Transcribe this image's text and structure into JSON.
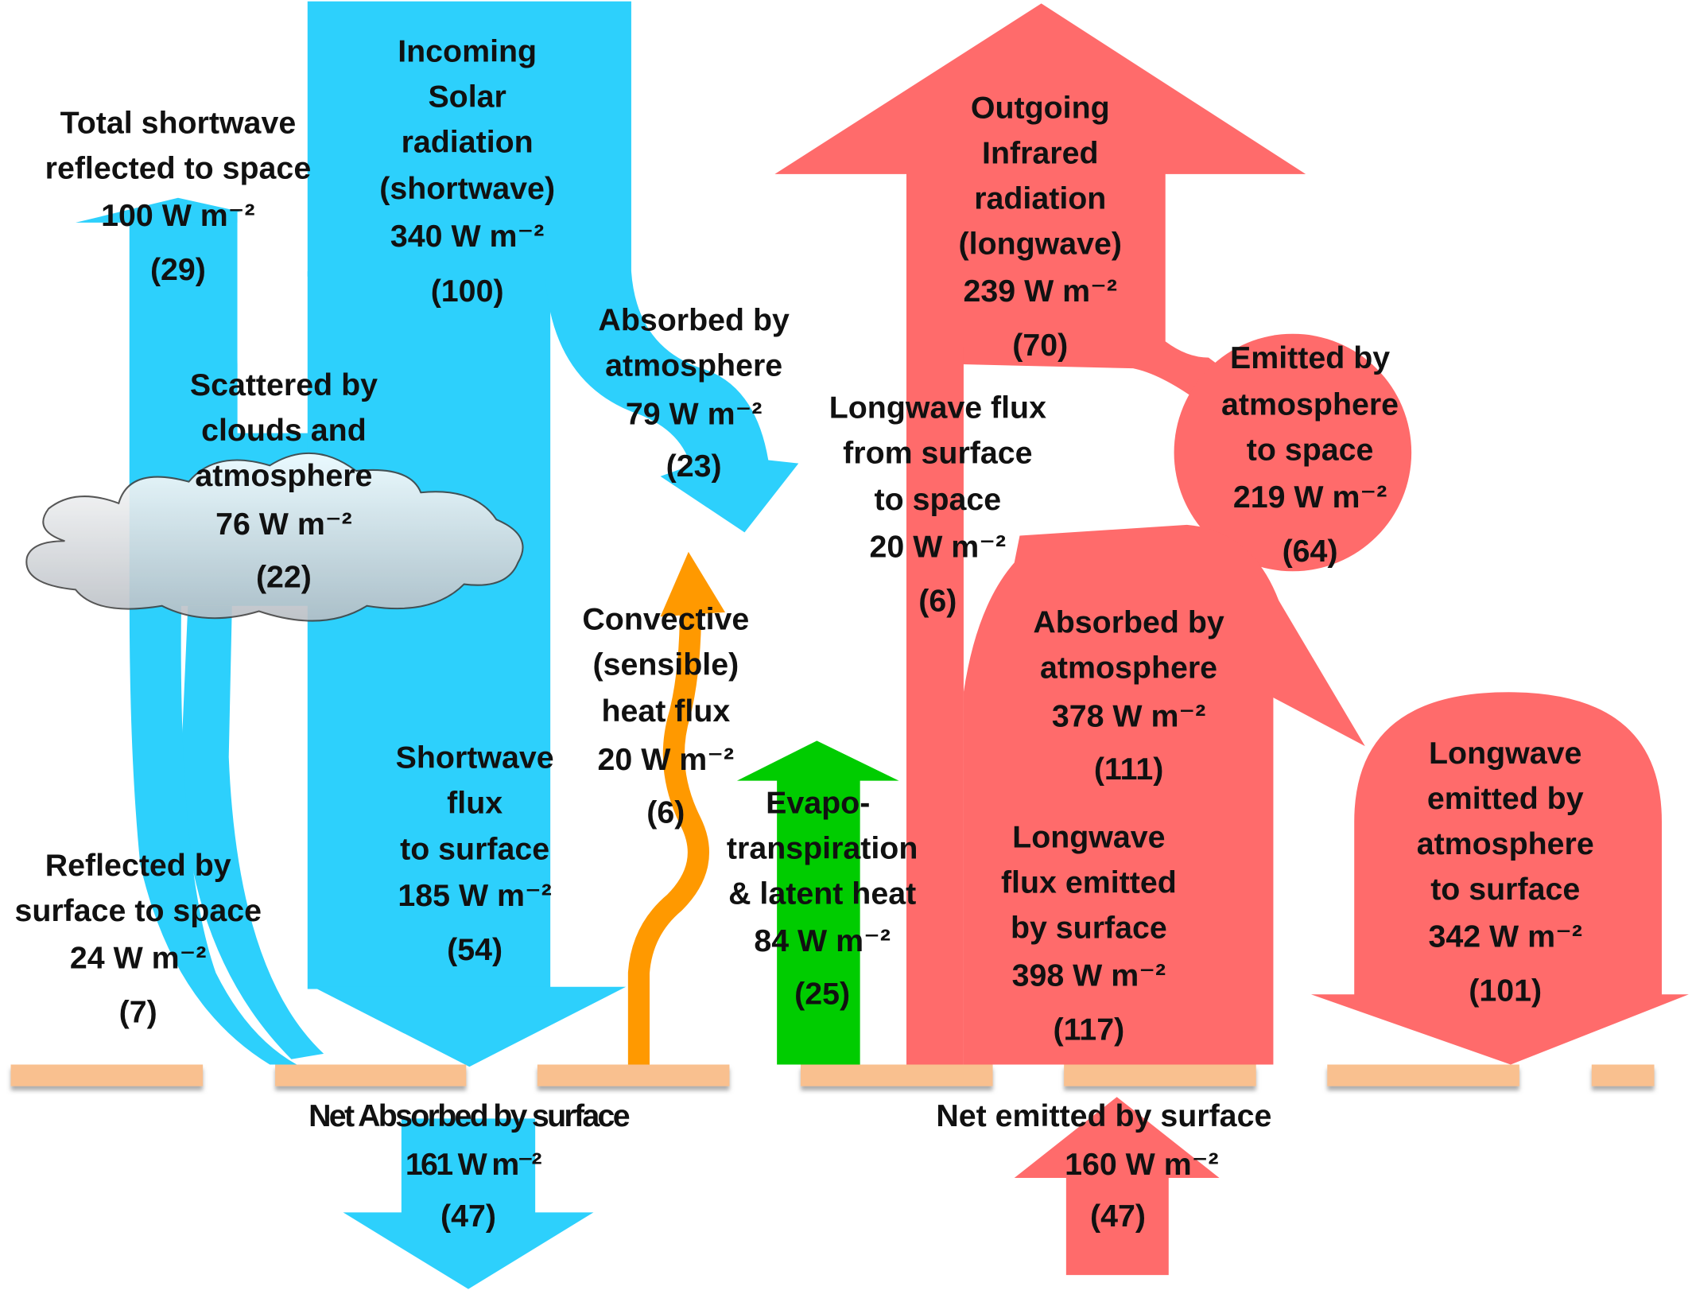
{
  "colors": {
    "shortwave": "#2DD0FC",
    "longwave": "#FF6B6B",
    "convective": "#FF9900",
    "latent": "#00CC00",
    "ground": "#F9C08F",
    "cloud": "#D8DCE0"
  },
  "labels": {
    "total_reflected": {
      "lines": [
        "Total shortwave",
        "reflected to space"
      ],
      "value": "100 W m⁻²",
      "percent": "(29)"
    },
    "incoming_solar": {
      "lines": [
        "Incoming",
        "Solar",
        "radiation",
        "(shortwave)"
      ],
      "value": "340 W m⁻²",
      "percent": "(100)"
    },
    "sw_absorbed_atmosphere": {
      "lines": [
        "Absorbed by",
        "atmosphere"
      ],
      "value": "79 W m⁻²",
      "percent": "(23)"
    },
    "scattered": {
      "lines": [
        "Scattered by",
        "clouds and",
        "atmosphere"
      ],
      "value": "76 W m⁻²",
      "percent": "(22)"
    },
    "sw_to_surface": {
      "lines": [
        "Shortwave",
        "flux",
        "to surface"
      ],
      "value": "185 W m⁻²",
      "percent": "(54)"
    },
    "reflected_surface": {
      "lines": [
        "Reflected by",
        "surface to space"
      ],
      "value": "24 W m⁻²",
      "percent": "(7)"
    },
    "convective": {
      "lines": [
        "Convective",
        "(sensible)",
        "heat flux"
      ],
      "value": "20 W m⁻²",
      "percent": "(6)"
    },
    "latent": {
      "lines": [
        "Evapo-",
        "transpiration",
        "& latent heat"
      ],
      "value": "84 W m⁻²",
      "percent": "(25)"
    },
    "outgoing_ir": {
      "lines": [
        "Outgoing",
        "Infrared",
        "radiation",
        "(longwave)"
      ],
      "value": "239 W m⁻²",
      "percent": "(70)"
    },
    "emitted_atm_space": {
      "lines": [
        "Emitted by",
        "atmosphere",
        "to space"
      ],
      "value": "219 W m⁻²",
      "percent": "(64)"
    },
    "lw_surface_space": {
      "lines": [
        "Longwave flux",
        "from surface",
        "to space"
      ],
      "value": "20 W m⁻²",
      "percent": "(6)"
    },
    "lw_absorbed_atmosphere": {
      "lines": [
        "Absorbed by",
        "atmosphere"
      ],
      "value": "378 W m⁻²",
      "percent": "(111)"
    },
    "lw_emitted_surface": {
      "lines": [
        "Longwave",
        "flux emitted",
        "by surface"
      ],
      "value": "398 W m⁻²",
      "percent": "(117)"
    },
    "lw_atm_to_surface": {
      "lines": [
        "Longwave",
        "emitted by",
        "atmosphere",
        "to surface"
      ],
      "value": "342 W m⁻²",
      "percent": "(101)"
    },
    "net_absorbed": {
      "lines": [
        "Net Absorbed by surface"
      ],
      "value": "161 W m⁻²",
      "percent": "(47)"
    },
    "net_emitted": {
      "lines": [
        "Net emitted by surface"
      ],
      "value": "160 W m⁻²",
      "percent": "(47)"
    }
  }
}
